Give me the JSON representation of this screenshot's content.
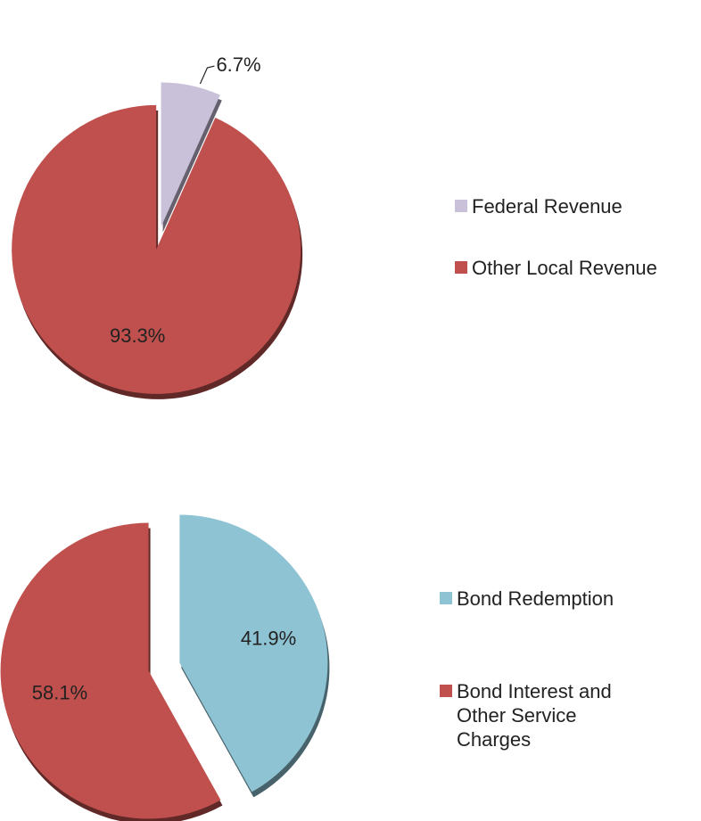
{
  "chart_data": [
    {
      "type": "pie",
      "categories": [
        "Federal Revenue",
        "Other Local Revenue"
      ],
      "values": [
        6.7,
        93.3
      ],
      "value_labels": [
        "6.7%",
        "93.3%"
      ],
      "colors": [
        "#c9c0da",
        "#c0504d"
      ],
      "legend": "right"
    },
    {
      "type": "pie",
      "categories": [
        "Bond Redemption",
        "Bond Interest and Other Service Charges"
      ],
      "values": [
        41.9,
        58.1
      ],
      "value_labels": [
        "41.9%",
        "58.1%"
      ],
      "colors": [
        "#8ec3d3",
        "#c0504d"
      ],
      "legend": "right"
    }
  ]
}
